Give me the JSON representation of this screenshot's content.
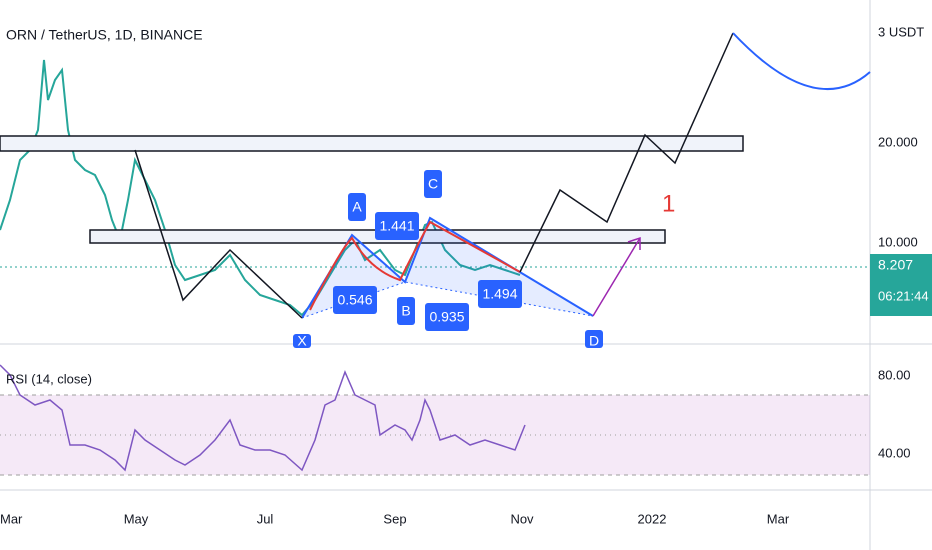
{
  "header": {
    "title": "ORN / TetherUS, 1D, BINANCE"
  },
  "price_axis": {
    "labels": [
      "3 USDT",
      "20.000",
      "10.000"
    ],
    "last_price": "8.207",
    "countdown": "06:21:44"
  },
  "pattern": {
    "points": [
      "X",
      "A",
      "B",
      "C",
      "D"
    ],
    "ratios": [
      "0.546",
      "1.441",
      "0.935",
      "1.494"
    ]
  },
  "annotation": "1",
  "rsi": {
    "title": "RSI (14, close)",
    "labels": [
      "80.00",
      "40.00"
    ]
  },
  "time_axis": {
    "labels": [
      "Mar",
      "May",
      "Jul",
      "Sep",
      "Nov",
      "2022",
      "Mar"
    ]
  }
}
